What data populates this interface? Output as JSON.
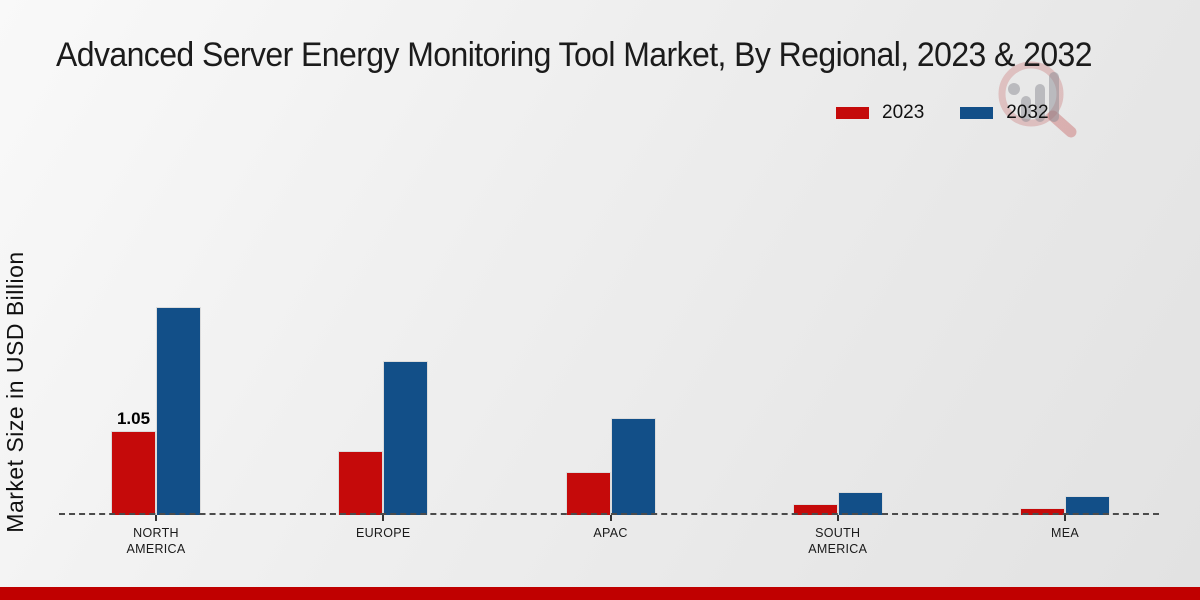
{
  "page": {
    "title": "Advanced Server Energy Monitoring Tool Market, By Regional, 2023 & 2032",
    "footer_color": "#c00000"
  },
  "legend": [
    {
      "label": "2023",
      "color": "#c50a0a"
    },
    {
      "label": "2032",
      "color": "#124f88"
    }
  ],
  "icons": {
    "watermark": "magnifier-bar-chart-logo"
  },
  "chart_data": {
    "type": "bar",
    "title": "Advanced Server Energy Monitoring Tool Market, By Regional, 2023 & 2032",
    "xlabel": "",
    "ylabel": "Market Size in USD Billion",
    "categories": [
      "NORTH AMERICA",
      "EUROPE",
      "APAC",
      "SOUTH AMERICA",
      "MEA"
    ],
    "category_label_lines": [
      [
        "NORTH",
        "AMERICA"
      ],
      [
        "EUROPE"
      ],
      [
        "APAC"
      ],
      [
        "SOUTH",
        "AMERICA"
      ],
      [
        "MEA"
      ]
    ],
    "series": [
      {
        "name": "2023",
        "color": "#c50a0a",
        "values": [
          1.05,
          0.8,
          0.54,
          0.14,
          0.09
        ]
      },
      {
        "name": "2032",
        "color": "#124f88",
        "values": [
          2.6,
          1.93,
          1.21,
          0.29,
          0.24
        ]
      }
    ],
    "value_labels": [
      {
        "series": "2023",
        "category": "NORTH AMERICA",
        "text": "1.05"
      }
    ],
    "ylim": [
      0,
      3.2
    ],
    "grid": false,
    "baseline_style": "dashed",
    "legend_position": "top-right",
    "units": "USD Billion"
  }
}
